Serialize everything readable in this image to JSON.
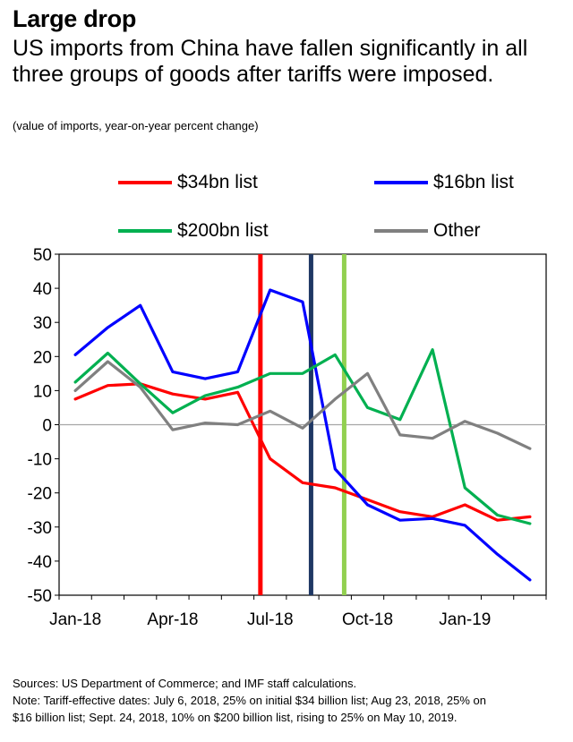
{
  "header": {
    "title": "Large drop",
    "subtitle": "US imports from China have fallen significantly in all three groups of goods after tariffs were imposed.",
    "units": "(value of imports, year-on-year percent change)"
  },
  "legend": [
    {
      "label": "$34bn list",
      "color": "#ff0000"
    },
    {
      "label": "$16bn list",
      "color": "#0000ff"
    },
    {
      "label": "$200bn list",
      "color": "#00b050"
    },
    {
      "label": "Other",
      "color": "#808080"
    }
  ],
  "chart_data": {
    "type": "line",
    "title": "Large drop",
    "xlabel": "",
    "ylabel": "value of imports, year-on-year percent change",
    "ylim": [
      -50,
      50
    ],
    "yticks": [
      50,
      40,
      30,
      20,
      10,
      0,
      -10,
      -20,
      -30,
      -40,
      -50
    ],
    "x": [
      "Jan-18",
      "Feb-18",
      "Mar-18",
      "Apr-18",
      "May-18",
      "Jun-18",
      "Jul-18",
      "Aug-18",
      "Sep-18",
      "Oct-18",
      "Nov-18",
      "Dec-18",
      "Jan-19",
      "Feb-19",
      "Mar-19"
    ],
    "xtick_labels": [
      {
        "label": "Jan-18",
        "index": 0
      },
      {
        "label": "Apr-18",
        "index": 3
      },
      {
        "label": "Jul-18",
        "index": 6
      },
      {
        "label": "Oct-18",
        "index": 9
      },
      {
        "label": "Jan-19",
        "index": 12
      }
    ],
    "series": [
      {
        "name": "$34bn list",
        "color": "#ff0000",
        "values": [
          7.5,
          11.5,
          12,
          9,
          7.5,
          9.5,
          -10,
          -17,
          -18.5,
          -22,
          -25.5,
          -27,
          -23.5,
          -28,
          -27
        ]
      },
      {
        "name": "$16bn list",
        "color": "#0000ff",
        "values": [
          20.5,
          28.5,
          35,
          15.5,
          13.5,
          15.5,
          39.5,
          36,
          -13,
          -23.5,
          -28,
          -27.5,
          -29.5,
          -38,
          -45.5
        ]
      },
      {
        "name": "$200bn list",
        "color": "#00b050",
        "values": [
          12.5,
          21,
          12,
          3.5,
          8.5,
          11,
          15,
          15,
          20.5,
          5,
          1.5,
          22,
          -18.5,
          -26.5,
          -29
        ]
      },
      {
        "name": "Other",
        "color": "#808080",
        "values": [
          10,
          18.5,
          11,
          -1.5,
          0.5,
          0,
          4,
          -1,
          7.5,
          15,
          -3,
          -4,
          1,
          -2.5,
          -7
        ]
      }
    ],
    "event_lines": [
      {
        "name": "$34bn tariff",
        "position": 6.2,
        "color": "#ff0000"
      },
      {
        "name": "$16bn tariff",
        "position": 7.76,
        "color": "#1f3864"
      },
      {
        "name": "$200bn tariff",
        "position": 8.78,
        "color": "#92d050"
      }
    ]
  },
  "notes": {
    "sources": "Sources: US Department of Commerce; and IMF staff calculations.",
    "note_line1": "Note: Tariff-effective dates: July 6, 2018, 25% on initial $34 billion list; Aug 23, 2018, 25% on",
    "note_line2": "$16 billion list; Sept. 24, 2018, 10% on $200 billion list, rising to 25% on May 10, 2019."
  }
}
